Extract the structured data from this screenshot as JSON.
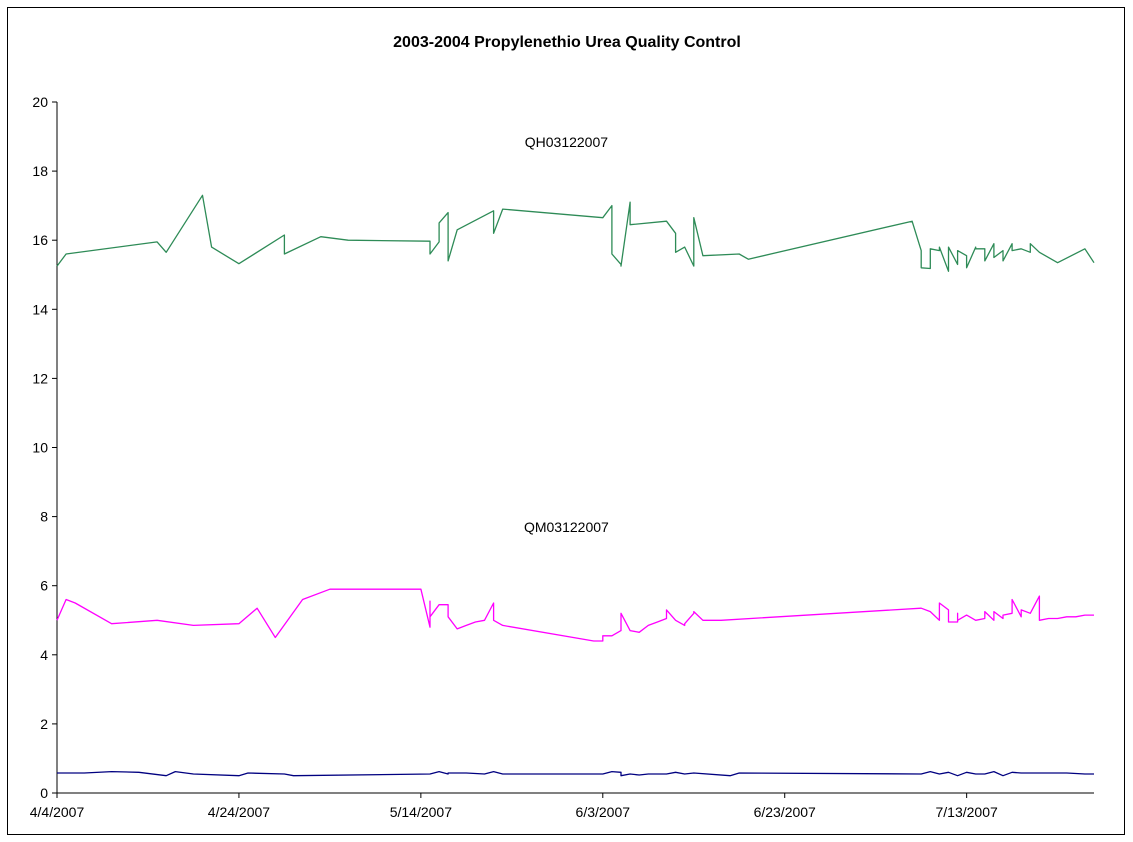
{
  "chart_data": {
    "type": "line",
    "title": "2003-2004 Propylenethio Urea Quality Control",
    "xlabel": "",
    "ylabel": "",
    "xlim": [
      "2007-04-04",
      "2007-07-27"
    ],
    "ylim": [
      0,
      20
    ],
    "y_ticks": [
      0,
      2,
      4,
      6,
      8,
      10,
      12,
      14,
      16,
      18,
      20
    ],
    "x_ticks": [
      {
        "date": "2007-04-04",
        "label": "4/4/2007"
      },
      {
        "date": "2007-04-24",
        "label": "4/24/2007"
      },
      {
        "date": "2007-05-14",
        "label": "5/14/2007"
      },
      {
        "date": "2007-06-03",
        "label": "6/3/2007"
      },
      {
        "date": "2007-06-23",
        "label": "6/23/2007"
      },
      {
        "date": "2007-07-13",
        "label": "7/13/2007"
      }
    ],
    "grid": false,
    "legend": "none",
    "annotations": [
      {
        "text": "QH03122007",
        "x": "2007-05-30",
        "y": 18.7
      },
      {
        "text": "QM03122007",
        "x": "2007-05-30",
        "y": 7.55
      }
    ],
    "series": [
      {
        "color": "#2e8b57",
        "x": [
          "2007-04-04",
          "2007-04-05",
          "2007-04-15",
          "2007-04-16",
          "2007-04-20",
          "2007-04-21",
          "2007-04-24",
          "2007-04-29",
          "2007-04-29",
          "2007-05-03",
          "2007-05-06",
          "2007-05-15",
          "2007-05-15",
          "2007-05-16",
          "2007-05-16",
          "2007-05-17",
          "2007-05-17",
          "2007-05-18",
          "2007-05-22",
          "2007-05-22",
          "2007-05-23",
          "2007-06-03",
          "2007-06-04",
          "2007-06-04",
          "2007-06-05",
          "2007-06-05",
          "2007-06-06",
          "2007-06-06",
          "2007-06-10",
          "2007-06-11",
          "2007-06-11",
          "2007-06-12",
          "2007-06-13",
          "2007-06-13",
          "2007-06-14",
          "2007-06-18",
          "2007-06-19",
          "2007-07-07",
          "2007-07-08",
          "2007-07-08",
          "2007-07-09",
          "2007-07-09",
          "2007-07-10",
          "2007-07-10",
          "2007-07-11",
          "2007-07-11",
          "2007-07-12",
          "2007-07-12",
          "2007-07-13",
          "2007-07-13",
          "2007-07-14",
          "2007-07-14",
          "2007-07-15",
          "2007-07-15",
          "2007-07-16",
          "2007-07-16",
          "2007-07-17",
          "2007-07-17",
          "2007-07-18",
          "2007-07-18",
          "2007-07-19",
          "2007-07-20",
          "2007-07-20",
          "2007-07-21",
          "2007-07-23",
          "2007-07-26",
          "2007-07-27"
        ],
        "y": [
          15.25,
          15.6,
          15.95,
          15.65,
          17.3,
          15.8,
          15.32,
          16.15,
          15.6,
          16.1,
          16.0,
          15.97,
          15.6,
          15.95,
          16.5,
          16.8,
          15.4,
          16.3,
          16.85,
          16.2,
          16.9,
          16.65,
          17.0,
          15.6,
          15.3,
          15.25,
          17.1,
          16.45,
          16.55,
          16.2,
          15.65,
          15.8,
          15.25,
          16.65,
          15.55,
          15.6,
          15.45,
          16.55,
          15.7,
          15.2,
          15.18,
          15.75,
          15.7,
          15.8,
          15.1,
          15.8,
          15.3,
          15.7,
          15.55,
          15.2,
          15.8,
          15.75,
          15.75,
          15.4,
          15.9,
          15.5,
          15.7,
          15.4,
          15.9,
          15.7,
          15.75,
          15.65,
          15.9,
          15.65,
          15.35,
          15.75,
          15.35
        ]
      },
      {
        "color": "#ff00ff",
        "x": [
          "2007-04-04",
          "2007-04-05",
          "2007-04-06",
          "2007-04-10",
          "2007-04-15",
          "2007-04-19",
          "2007-04-24",
          "2007-04-26",
          "2007-04-28",
          "2007-05-01",
          "2007-05-04",
          "2007-05-14",
          "2007-05-15",
          "2007-05-15",
          "2007-05-15",
          "2007-05-16",
          "2007-05-17",
          "2007-05-17",
          "2007-05-18",
          "2007-05-19",
          "2007-05-20",
          "2007-05-21",
          "2007-05-22",
          "2007-05-22",
          "2007-05-23",
          "2007-06-02",
          "2007-06-03",
          "2007-06-03",
          "2007-06-04",
          "2007-06-05",
          "2007-06-05",
          "2007-06-06",
          "2007-06-07",
          "2007-06-08",
          "2007-06-09",
          "2007-06-10",
          "2007-06-10",
          "2007-06-11",
          "2007-06-12",
          "2007-06-12",
          "2007-06-13",
          "2007-06-13",
          "2007-06-14",
          "2007-06-16",
          "2007-07-08",
          "2007-07-09",
          "2007-07-10",
          "2007-07-10",
          "2007-07-11",
          "2007-07-11",
          "2007-07-12",
          "2007-07-12",
          "2007-07-12",
          "2007-07-13",
          "2007-07-14",
          "2007-07-15",
          "2007-07-15",
          "2007-07-16",
          "2007-07-16",
          "2007-07-17",
          "2007-07-17",
          "2007-07-18",
          "2007-07-18",
          "2007-07-19",
          "2007-07-19",
          "2007-07-20",
          "2007-07-21",
          "2007-07-21",
          "2007-07-22",
          "2007-07-23",
          "2007-07-24",
          "2007-07-25",
          "2007-07-26",
          "2007-07-27"
        ],
        "y": [
          5.0,
          5.6,
          5.5,
          4.9,
          5.0,
          4.85,
          4.9,
          5.35,
          4.5,
          5.6,
          5.9,
          5.9,
          4.8,
          5.55,
          5.1,
          5.45,
          5.45,
          5.1,
          4.75,
          4.85,
          4.95,
          5.0,
          5.5,
          5.0,
          4.85,
          4.4,
          4.4,
          4.55,
          4.55,
          4.7,
          5.2,
          4.7,
          4.65,
          4.85,
          4.95,
          5.05,
          5.3,
          5.0,
          4.85,
          4.9,
          5.2,
          5.25,
          5.0,
          5.0,
          5.35,
          5.25,
          5.0,
          5.5,
          5.3,
          4.95,
          4.95,
          5.2,
          5.0,
          5.15,
          5.0,
          5.05,
          5.25,
          5.0,
          5.25,
          5.05,
          5.15,
          5.2,
          5.6,
          5.1,
          5.3,
          5.2,
          5.7,
          5.0,
          5.05,
          5.05,
          5.1,
          5.1,
          5.15,
          5.15
        ]
      },
      {
        "color": "#000080",
        "x": [
          "2007-04-04",
          "2007-04-07",
          "2007-04-10",
          "2007-04-13",
          "2007-04-16",
          "2007-04-17",
          "2007-04-19",
          "2007-04-24",
          "2007-04-25",
          "2007-04-29",
          "2007-04-30",
          "2007-05-15",
          "2007-05-16",
          "2007-05-17",
          "2007-05-17",
          "2007-05-19",
          "2007-05-21",
          "2007-05-22",
          "2007-05-23",
          "2007-06-03",
          "2007-06-04",
          "2007-06-05",
          "2007-06-05",
          "2007-06-06",
          "2007-06-07",
          "2007-06-08",
          "2007-06-10",
          "2007-06-11",
          "2007-06-12",
          "2007-06-13",
          "2007-06-17",
          "2007-06-18",
          "2007-07-08",
          "2007-07-09",
          "2007-07-10",
          "2007-07-11",
          "2007-07-12",
          "2007-07-13",
          "2007-07-14",
          "2007-07-15",
          "2007-07-16",
          "2007-07-17",
          "2007-07-18",
          "2007-07-19",
          "2007-07-20",
          "2007-07-22",
          "2007-07-24",
          "2007-07-26",
          "2007-07-27"
        ],
        "y": [
          0.58,
          0.58,
          0.62,
          0.6,
          0.5,
          0.62,
          0.55,
          0.5,
          0.58,
          0.55,
          0.5,
          0.55,
          0.62,
          0.55,
          0.58,
          0.58,
          0.55,
          0.62,
          0.55,
          0.55,
          0.62,
          0.6,
          0.5,
          0.55,
          0.52,
          0.55,
          0.55,
          0.6,
          0.55,
          0.58,
          0.5,
          0.58,
          0.55,
          0.62,
          0.55,
          0.6,
          0.5,
          0.6,
          0.55,
          0.55,
          0.62,
          0.5,
          0.6,
          0.58,
          0.58,
          0.58,
          0.58,
          0.55,
          0.55
        ]
      }
    ]
  }
}
